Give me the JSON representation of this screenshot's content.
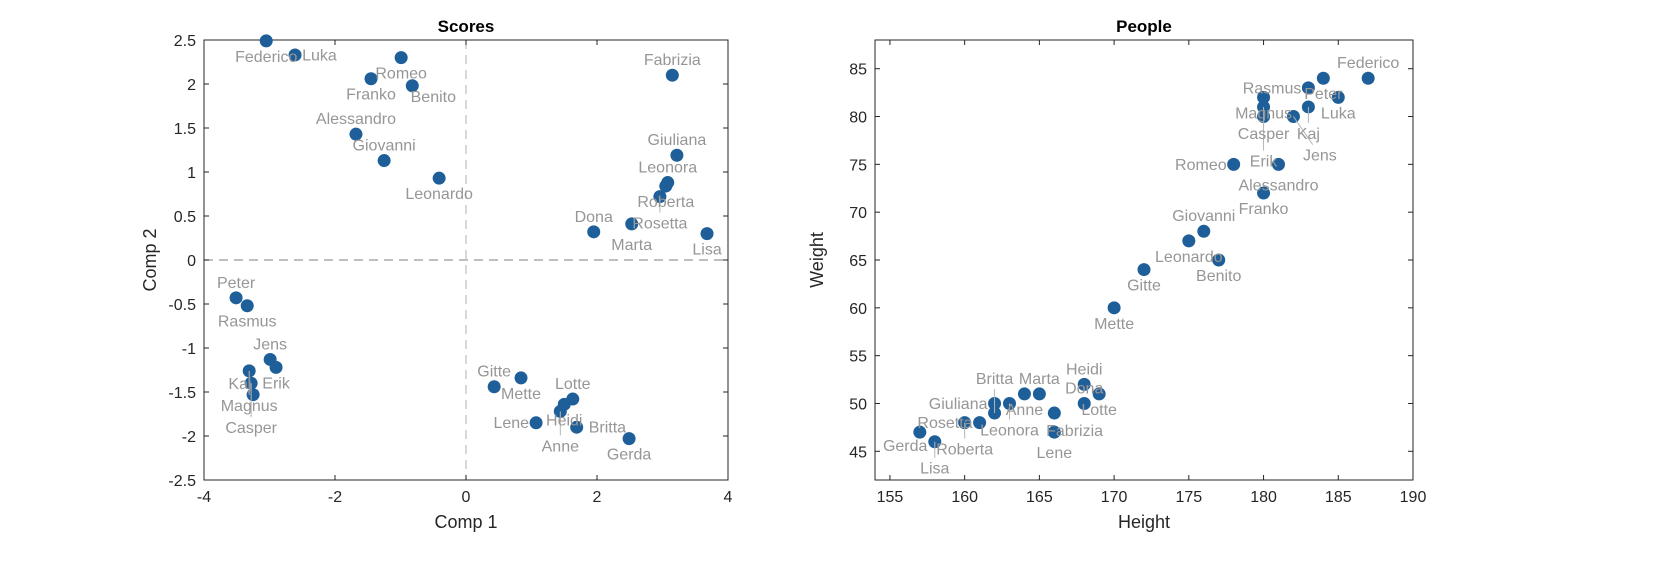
{
  "chart_data": [
    {
      "type": "scatter",
      "title": "Scores",
      "xlabel": "Comp 1",
      "ylabel": "Comp 2",
      "xlim": [
        -4,
        4
      ],
      "ylim": [
        -2.5,
        2.5
      ],
      "xticks": [
        -4,
        -2,
        0,
        2,
        4
      ],
      "yticks": [
        -2.5,
        -2,
        -1.5,
        -1,
        -0.5,
        0,
        0.5,
        1,
        1.5,
        2,
        2.5
      ],
      "zero_lines": "dashed",
      "grid": false,
      "point_color": "#1f5f99",
      "label_color": "#969696",
      "points": [
        {
          "name": "Federico",
          "x": -3.05,
          "y": 2.49
        },
        {
          "name": "Luka",
          "x": -2.61,
          "y": 2.33
        },
        {
          "name": "Romeo",
          "x": -0.99,
          "y": 2.3
        },
        {
          "name": "Franko",
          "x": -1.45,
          "y": 2.06
        },
        {
          "name": "Benito",
          "x": -0.82,
          "y": 1.98
        },
        {
          "name": "Alessandro",
          "x": -1.68,
          "y": 1.43
        },
        {
          "name": "Giovanni",
          "x": -1.25,
          "y": 1.13
        },
        {
          "name": "Leonardo",
          "x": -0.41,
          "y": 0.93
        },
        {
          "name": "Fabrizia",
          "x": 3.15,
          "y": 2.1
        },
        {
          "name": "Giuliana",
          "x": 3.22,
          "y": 1.19
        },
        {
          "name": "Leonora",
          "x": 3.08,
          "y": 0.88
        },
        {
          "name": "Roberta",
          "x": 3.05,
          "y": 0.84
        },
        {
          "name": "Rosetta",
          "x": 2.96,
          "y": 0.72
        },
        {
          "name": "Dona",
          "x": 1.95,
          "y": 0.32
        },
        {
          "name": "Marta",
          "x": 2.53,
          "y": 0.41
        },
        {
          "name": "Lisa",
          "x": 3.68,
          "y": 0.3
        },
        {
          "name": "Peter",
          "x": -3.51,
          "y": -0.43
        },
        {
          "name": "Rasmus",
          "x": -3.34,
          "y": -0.52
        },
        {
          "name": "Jens",
          "x": -2.99,
          "y": -1.13
        },
        {
          "name": "Erik",
          "x": -2.9,
          "y": -1.22
        },
        {
          "name": "Magnus",
          "x": -3.31,
          "y": -1.26
        },
        {
          "name": "Casper",
          "x": -3.28,
          "y": -1.4
        },
        {
          "name": "Kaj",
          "x": -3.25,
          "y": -1.53
        },
        {
          "name": "Gitte",
          "x": 0.43,
          "y": -1.44
        },
        {
          "name": "Mette",
          "x": 0.84,
          "y": -1.34
        },
        {
          "name": "Lotte",
          "x": 1.63,
          "y": -1.58
        },
        {
          "name": "Heidi",
          "x": 1.5,
          "y": -1.64
        },
        {
          "name": "Anne",
          "x": 1.44,
          "y": -1.72
        },
        {
          "name": "Lene",
          "x": 1.07,
          "y": -1.85
        },
        {
          "name": "Britta",
          "x": 1.69,
          "y": -1.9
        },
        {
          "name": "Gerda",
          "x": 2.49,
          "y": -2.03
        }
      ]
    },
    {
      "type": "scatter",
      "title": "People",
      "xlabel": "Height",
      "ylabel": "Weight",
      "xlim": [
        154,
        190
      ],
      "ylim": [
        42,
        88
      ],
      "xticks": [
        155,
        160,
        165,
        170,
        175,
        180,
        185,
        190
      ],
      "yticks": [
        45,
        50,
        55,
        60,
        65,
        70,
        75,
        80,
        85
      ],
      "grid": false,
      "point_color": "#1f5f99",
      "label_color": "#969696",
      "points": [
        {
          "name": "Federico",
          "x": 187,
          "y": 84
        },
        {
          "name": "Peter",
          "x": 184,
          "y": 84
        },
        {
          "name": "Rasmus",
          "x": 183,
          "y": 83
        },
        {
          "name": "Luka",
          "x": 185,
          "y": 82
        },
        {
          "name": "Magnus",
          "x": 180,
          "y": 82
        },
        {
          "name": "Casper",
          "x": 180,
          "y": 81
        },
        {
          "name": "Kaj",
          "x": 183,
          "y": 81
        },
        {
          "name": "Erik",
          "x": 180,
          "y": 80
        },
        {
          "name": "Jens",
          "x": 182,
          "y": 80
        },
        {
          "name": "Romeo",
          "x": 178,
          "y": 75
        },
        {
          "name": "Alessandro",
          "x": 181,
          "y": 75
        },
        {
          "name": "Franko",
          "x": 180,
          "y": 72
        },
        {
          "name": "Giovanni",
          "x": 176,
          "y": 68
        },
        {
          "name": "Leonardo",
          "x": 175,
          "y": 67
        },
        {
          "name": "Benito",
          "x": 177,
          "y": 65
        },
        {
          "name": "Gitte",
          "x": 172,
          "y": 64
        },
        {
          "name": "Mette",
          "x": 170,
          "y": 60
        },
        {
          "name": "Heidi",
          "x": 168,
          "y": 52
        },
        {
          "name": "Lotte",
          "x": 169,
          "y": 51
        },
        {
          "name": "Dona",
          "x": 168,
          "y": 50
        },
        {
          "name": "Marta",
          "x": 165,
          "y": 51
        },
        {
          "name": "Anne",
          "x": 164,
          "y": 51
        },
        {
          "name": "Giuliana",
          "x": 162,
          "y": 50
        },
        {
          "name": "Leonora",
          "x": 163,
          "y": 50
        },
        {
          "name": "Fabrizia",
          "x": 166,
          "y": 49
        },
        {
          "name": "Lene",
          "x": 166,
          "y": 47
        },
        {
          "name": "Britta",
          "x": 162,
          "y": 49
        },
        {
          "name": "Rosetta",
          "x": 161,
          "y": 48
        },
        {
          "name": "Roberta",
          "x": 160,
          "y": 48
        },
        {
          "name": "Gerda",
          "x": 157,
          "y": 47
        },
        {
          "name": "Lisa",
          "x": 158,
          "y": 46
        }
      ]
    }
  ]
}
